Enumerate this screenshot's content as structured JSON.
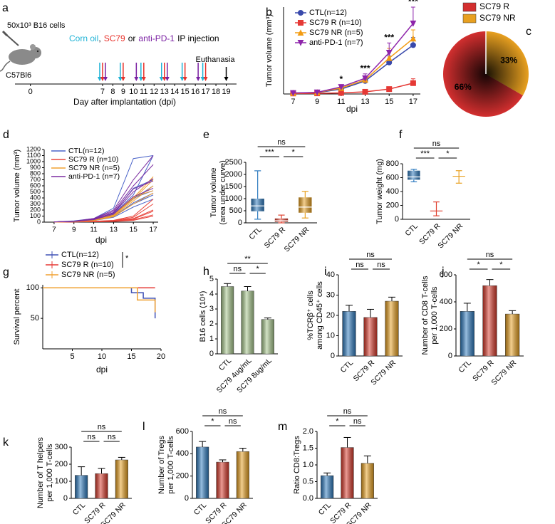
{
  "chart_data": [
    {
      "type": "timeline",
      "label": "a",
      "cells": "50x10³ B16 cells",
      "mouse": "C57Bl6",
      "treatments": [
        {
          "name": "Corn oil",
          "color": "#1fb3d6",
          "days": [
            7,
            9,
            11,
            13,
            15,
            17
          ]
        },
        {
          "name": "SC79",
          "color": "#e8312a",
          "days": [
            7,
            9,
            11,
            13,
            15,
            17
          ]
        },
        {
          "name": "anti-PD-1",
          "color": "#7a1fa2",
          "days": [
            7,
            10,
            13,
            16
          ]
        }
      ],
      "separators": [
        ",",
        "or"
      ],
      "injection_label": "IP injection",
      "end_label": "Euthanasia",
      "end_day": 19,
      "xlim": [
        -1.5,
        20
      ],
      "xticks": [
        0,
        7,
        8,
        9,
        10,
        11,
        12,
        13,
        14,
        15,
        16,
        17,
        18,
        19
      ],
      "xlabel": "Day after implantation (dpi)"
    },
    {
      "type": "line",
      "label": "b",
      "x": [
        7,
        9,
        11,
        13,
        15,
        17
      ],
      "xlim": [
        6.2,
        17.6
      ],
      "xticks": [
        7,
        9,
        11,
        13,
        15,
        17
      ],
      "ylim": [
        0,
        800
      ],
      "xlabel": "dpi",
      "ylabel": "Tumor volume (mm³)",
      "series": [
        {
          "name": "CTL(n=12)",
          "color": "#3949ab",
          "marker": "circle",
          "values": [
            8,
            12,
            45,
            120,
            290,
            450
          ],
          "errors": [
            3,
            4,
            10,
            25,
            60,
            70
          ]
        },
        {
          "name": "SC79 R (n=10)",
          "color": "#e53935",
          "marker": "square",
          "values": [
            5,
            6,
            10,
            20,
            45,
            100
          ],
          "errors": [
            2,
            2,
            4,
            8,
            15,
            40
          ]
        },
        {
          "name": "SC79 NR (n=5)",
          "color": "#f39c12",
          "marker": "triangle-up",
          "values": [
            8,
            14,
            55,
            130,
            330,
            510
          ],
          "errors": [
            3,
            5,
            15,
            35,
            90,
            80
          ]
        },
        {
          "name": "anti-PD-1 (n=7)",
          "color": "#8e24aa",
          "marker": "triangle-down",
          "values": [
            9,
            15,
            65,
            145,
            380,
            650
          ],
          "errors": [
            4,
            6,
            20,
            40,
            90,
            150
          ]
        }
      ],
      "annotations": {
        "x": [
          11,
          13,
          15,
          17
        ],
        "labels": [
          "*",
          "***",
          "***",
          "***"
        ]
      }
    },
    {
      "type": "pie",
      "label": "c",
      "categories": [
        "SC79 R",
        "SC79 NR"
      ],
      "values": [
        66,
        33
      ],
      "value_labels": [
        "66%",
        "33%"
      ],
      "colors": [
        "#d32f2f",
        "#e8a020"
      ]
    },
    {
      "type": "line",
      "label": "d",
      "x": [
        7,
        9,
        11,
        13,
        15,
        17
      ],
      "xlim": [
        6,
        17.5
      ],
      "xticks": [
        7,
        9,
        11,
        13,
        15,
        17
      ],
      "ylim": [
        0,
        1200
      ],
      "yticks": [
        0,
        100,
        200,
        300,
        400,
        500,
        600,
        700,
        800,
        900,
        1000,
        1100,
        1200
      ],
      "xlabel": "dpi",
      "ylabel": "Tumor volume (mm³)",
      "series": [
        {
          "name": "CTL(n=12)",
          "color": "#4a63c8",
          "curves": [
            [
              5,
              20,
              60,
              230,
              1050,
              1100
            ],
            [
              5,
              15,
              40,
              150,
              560,
              700
            ],
            [
              3,
              10,
              30,
              120,
              400,
              520
            ],
            [
              4,
              12,
              35,
              100,
              300,
              450
            ],
            [
              5,
              15,
              50,
              130,
              380,
              600
            ],
            [
              3,
              8,
              25,
              80,
              250,
              380
            ],
            [
              4,
              10,
              30,
              90,
              320,
              480
            ],
            [
              5,
              14,
              45,
              140,
              450,
              1100
            ]
          ]
        },
        {
          "name": "SC79 R (n=10)",
          "color": "#e8453c",
          "curves": [
            [
              3,
              5,
              10,
              20,
              60,
              200
            ],
            [
              2,
              4,
              8,
              15,
              40,
              120
            ],
            [
              3,
              6,
              12,
              25,
              80,
              300
            ],
            [
              2,
              4,
              6,
              10,
              30,
              100
            ],
            [
              3,
              5,
              10,
              20,
              50,
              180
            ],
            [
              4,
              8,
              15,
              30,
              100,
              380
            ]
          ]
        },
        {
          "name": "SC79 NR (n=5)",
          "color": "#f0a030",
          "curves": [
            [
              4,
              10,
              40,
              120,
              400,
              750
            ],
            [
              3,
              8,
              30,
              100,
              350,
              600
            ],
            [
              5,
              12,
              45,
              130,
              420,
              520
            ],
            [
              3,
              8,
              25,
              90,
              300,
              480
            ],
            [
              4,
              10,
              35,
              110,
              380,
              700
            ]
          ]
        },
        {
          "name": "anti-PD-1 (n=7)",
          "color": "#7b2ca0",
          "curves": [
            [
              5,
              15,
              60,
              200,
              700,
              1100
            ],
            [
              4,
              12,
              50,
              150,
              500,
              720
            ],
            [
              5,
              14,
              55,
              180,
              600,
              950
            ],
            [
              4,
              10,
              40,
              130,
              420,
              560
            ],
            [
              5,
              12,
              45,
              160,
              550,
              680
            ]
          ]
        }
      ]
    },
    {
      "type": "box",
      "label": "e",
      "categories": [
        "CTL",
        "SC79 R",
        "SC79 NR"
      ],
      "colors": [
        "#2f7cc0",
        "#e0402f",
        "#e8a020"
      ],
      "mins": [
        150,
        0,
        200
      ],
      "q1": [
        480,
        40,
        420
      ],
      "medians": [
        700,
        90,
        650
      ],
      "q3": [
        1000,
        180,
        1050
      ],
      "maxs": [
        2150,
        320,
        1300
      ],
      "ylim": [
        0,
        2500
      ],
      "yticks": [
        0,
        500,
        1000,
        1500,
        2000,
        2500
      ],
      "ylabel": [
        "Tumor volume",
        "(area under curve)"
      ],
      "brackets": [
        {
          "groups": [
            0,
            2
          ],
          "label": "ns"
        },
        {
          "groups": [
            0,
            1
          ],
          "label": "***"
        },
        {
          "groups": [
            1,
            2
          ],
          "label": "*"
        }
      ]
    },
    {
      "type": "box",
      "label": "f",
      "categories": [
        "CTL",
        "SC79 R",
        "SC79 NR"
      ],
      "colors": [
        "#2f7cc0",
        "#e0402f",
        "#e8a020"
      ],
      "mins": [
        540,
        50,
        520
      ],
      "q1": [
        570,
        120,
        620
      ],
      "medians": [
        610,
        120,
        620
      ],
      "q3": [
        700,
        120,
        620
      ],
      "maxs": [
        720,
        250,
        700
      ],
      "ylim": [
        0,
        800
      ],
      "yticks": [
        0,
        200,
        400,
        600,
        800
      ],
      "ylabel": [
        "Tumor weight (mg)"
      ],
      "brackets": [
        {
          "groups": [
            0,
            2
          ],
          "label": "ns"
        },
        {
          "groups": [
            0,
            1
          ],
          "label": "***"
        },
        {
          "groups": [
            1,
            2
          ],
          "label": "*"
        }
      ]
    },
    {
      "type": "line",
      "step": true,
      "label": "g",
      "xlim": [
        0,
        20
      ],
      "xticks": [
        5,
        10,
        15,
        20
      ],
      "ylim": [
        0,
        105
      ],
      "yticks": [
        50,
        100
      ],
      "xlabel": "dpi",
      "ylabel": "Survival percent",
      "annotation": "*",
      "series": [
        {
          "name": "CTL(n=12)",
          "color": "#3f51b5",
          "x": [
            0,
            15,
            17,
            19
          ],
          "values": [
            100,
            92,
            83,
            50
          ]
        },
        {
          "name": "SC79 R (n=10)",
          "color": "#e53935",
          "x": [
            0,
            19
          ],
          "values": [
            100,
            100
          ]
        },
        {
          "name": "SC79 NR (n=5)",
          "color": "#f0a030",
          "x": [
            0,
            16,
            19
          ],
          "values": [
            100,
            80,
            60
          ]
        }
      ]
    },
    {
      "type": "bar",
      "label": "h",
      "categories": [
        "CTL",
        "SC79 4ug/mL",
        "SC79 8ug/mL"
      ],
      "values": [
        4.5,
        4.2,
        2.3
      ],
      "errors": [
        0.2,
        0.3,
        0.1
      ],
      "colors": [
        "#a9c98e",
        "#a9c98e",
        "#a9c98e"
      ],
      "ylim": [
        0,
        5
      ],
      "yticks": [
        0,
        1,
        2,
        3,
        4,
        5
      ],
      "ylabel": [
        "B16 cells (10⁶)"
      ],
      "brackets": [
        {
          "groups": [
            0,
            2
          ],
          "label": "**"
        },
        {
          "groups": [
            0,
            1
          ],
          "label": "ns"
        },
        {
          "groups": [
            1,
            2
          ],
          "label": "*"
        }
      ]
    },
    {
      "type": "bar",
      "label": "i",
      "categories": [
        "CTL",
        "SC79 R",
        "SC79 NR"
      ],
      "values": [
        22,
        19,
        27
      ],
      "errors": [
        3,
        4,
        2
      ],
      "colors": [
        "#2f7cc0",
        "#d93a2b",
        "#e8a020"
      ],
      "ylim": [
        0,
        40
      ],
      "yticks": [
        0,
        10,
        20,
        30,
        40
      ],
      "ylabel": [
        "%TCRβ⁺ cells",
        "among CD45⁺ cells"
      ],
      "brackets": [
        {
          "groups": [
            0,
            2
          ],
          "label": "ns"
        },
        {
          "groups": [
            0,
            1
          ],
          "label": "ns"
        },
        {
          "groups": [
            1,
            2
          ],
          "label": "ns"
        }
      ]
    },
    {
      "type": "bar",
      "label": "j",
      "categories": [
        "CTL",
        "SC79 R",
        "SC79 NR"
      ],
      "values": [
        330,
        520,
        310
      ],
      "errors": [
        60,
        45,
        25
      ],
      "colors": [
        "#2f7cc0",
        "#d93a2b",
        "#e8a020"
      ],
      "ylim": [
        0,
        600
      ],
      "yticks": [
        0,
        200,
        400,
        600
      ],
      "ylabel": [
        "Number of CD8 T-cells",
        "per 1,000 T-cells"
      ],
      "brackets": [
        {
          "groups": [
            0,
            2
          ],
          "label": "ns"
        },
        {
          "groups": [
            0,
            1
          ],
          "label": "*"
        },
        {
          "groups": [
            1,
            2
          ],
          "label": "*"
        }
      ]
    },
    {
      "type": "bar",
      "label": "k",
      "categories": [
        "CTL",
        "SC79 R",
        "SC79 NR"
      ],
      "values": [
        135,
        145,
        225
      ],
      "errors": [
        50,
        30,
        15
      ],
      "colors": [
        "#2f7cc0",
        "#d93a2b",
        "#e8a020"
      ],
      "ylim": [
        0,
        300
      ],
      "yticks": [
        0,
        100,
        200,
        300
      ],
      "ylabel": [
        "Number of T helpers",
        "per 1,000 T-cells"
      ],
      "brackets": [
        {
          "groups": [
            0,
            2
          ],
          "label": "ns"
        },
        {
          "groups": [
            0,
            1
          ],
          "label": "ns"
        },
        {
          "groups": [
            1,
            2
          ],
          "label": "ns"
        }
      ]
    },
    {
      "type": "bar",
      "label": "l",
      "categories": [
        "CTL",
        "SC79 R",
        "SC79 NR"
      ],
      "values": [
        460,
        325,
        420
      ],
      "errors": [
        50,
        20,
        30
      ],
      "colors": [
        "#2f7cc0",
        "#d93a2b",
        "#e8a020"
      ],
      "ylim": [
        0,
        600
      ],
      "yticks": [
        0,
        200,
        400,
        600
      ],
      "ylabel": [
        "Number of Tregs",
        "per 1,000 T-cells"
      ],
      "brackets": [
        {
          "groups": [
            0,
            2
          ],
          "label": "ns"
        },
        {
          "groups": [
            0,
            1
          ],
          "label": "*"
        },
        {
          "groups": [
            1,
            2
          ],
          "label": "ns"
        }
      ]
    },
    {
      "type": "bar",
      "label": "m",
      "categories": [
        "CTL",
        "SC79 R",
        "SC79 NR"
      ],
      "values": [
        0.68,
        1.52,
        1.05
      ],
      "errors": [
        0.08,
        0.3,
        0.22
      ],
      "colors": [
        "#2f7cc0",
        "#d93a2b",
        "#e8a020"
      ],
      "ylim": [
        0,
        2
      ],
      "yticks": [
        {
          "value": 0,
          "label": "0.0"
        },
        0.5,
        {
          "value": 1,
          "label": "1.0"
        },
        1.5,
        {
          "value": 2,
          "label": "2.0"
        }
      ],
      "ylabel": [
        "Ratio CD8:Tregs"
      ],
      "brackets": [
        {
          "groups": [
            0,
            2
          ],
          "label": "ns"
        },
        {
          "groups": [
            0,
            1
          ],
          "label": "*"
        },
        {
          "groups": [
            1,
            2
          ],
          "label": "ns"
        }
      ]
    }
  ]
}
